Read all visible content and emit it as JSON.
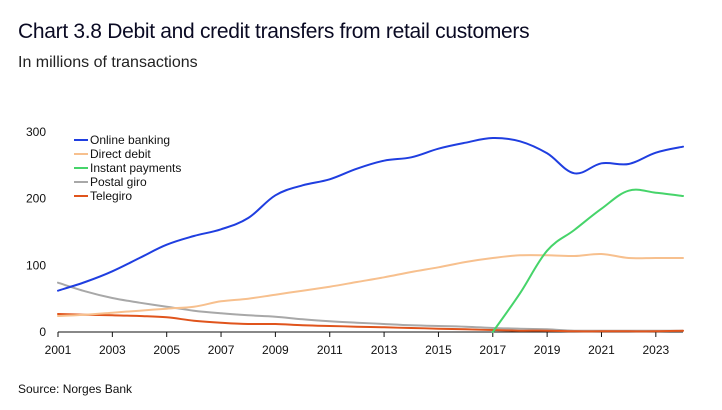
{
  "title": "Chart 3.8 Debit and credit transfers from retail customers",
  "subtitle": "In millions of transactions",
  "source": "Source: Norges Bank",
  "chart_data": {
    "type": "line",
    "x": [
      2001,
      2002,
      2003,
      2004,
      2005,
      2006,
      2007,
      2008,
      2009,
      2010,
      2011,
      2012,
      2013,
      2014,
      2015,
      2016,
      2017,
      2018,
      2019,
      2020,
      2021,
      2022,
      2023,
      2024
    ],
    "xticks": [
      "2001",
      "2003",
      "2005",
      "2007",
      "2009",
      "2011",
      "2013",
      "2015",
      "2017",
      "2019",
      "2021",
      "2023"
    ],
    "yticks": [
      "0",
      "100",
      "200",
      "300"
    ],
    "ylim": [
      0,
      300
    ],
    "xlim": [
      2001,
      2024
    ],
    "legend_position": "top-left",
    "series": [
      {
        "name": "Online banking",
        "color": "#1f3ee0",
        "values": [
          62,
          75,
          91,
          111,
          131,
          144,
          154,
          171,
          205,
          220,
          229,
          245,
          257,
          262,
          275,
          284,
          291,
          286,
          268,
          238,
          253,
          252,
          269,
          278
        ]
      },
      {
        "name": "Direct debit",
        "color": "#f7c08e",
        "values": [
          24,
          26,
          29,
          32,
          35,
          38,
          46,
          50,
          56,
          62,
          68,
          75,
          82,
          90,
          97,
          105,
          111,
          115,
          115,
          114,
          117,
          111,
          111,
          111
        ]
      },
      {
        "name": "Instant payments",
        "color": "#46d46a",
        "values": [
          null,
          null,
          null,
          null,
          null,
          null,
          null,
          null,
          null,
          null,
          null,
          null,
          null,
          null,
          null,
          null,
          0,
          58,
          122,
          153,
          185,
          212,
          209,
          204
        ]
      },
      {
        "name": "Postal giro",
        "color": "#a8a8a8",
        "values": [
          74,
          61,
          51,
          44,
          38,
          32,
          28,
          25,
          23,
          19,
          16,
          14,
          12,
          10,
          9,
          8,
          6,
          5,
          4,
          2,
          2,
          2,
          2,
          2
        ]
      },
      {
        "name": "Telegiro",
        "color": "#e0541c",
        "values": [
          27,
          26,
          25,
          24,
          22,
          17,
          14,
          12,
          12,
          10,
          9,
          8,
          7,
          6,
          5,
          4,
          3,
          2,
          2,
          1,
          1,
          1,
          1,
          2
        ]
      }
    ]
  }
}
